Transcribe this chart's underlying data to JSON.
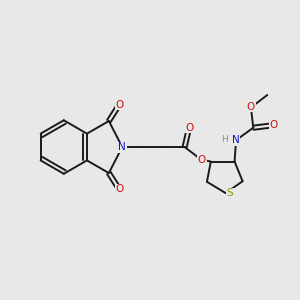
{
  "bg_color": "#e8e8e8",
  "line_color": "#1a1a1a",
  "bond_lw": 1.4,
  "dbo": 0.06,
  "N_color": "#1010cc",
  "O_color": "#cc1010",
  "S_color": "#909900",
  "H_color": "#7a9a7a",
  "font_size": 7.0,
  "xlim": [
    0,
    10
  ],
  "ylim": [
    0,
    10
  ]
}
